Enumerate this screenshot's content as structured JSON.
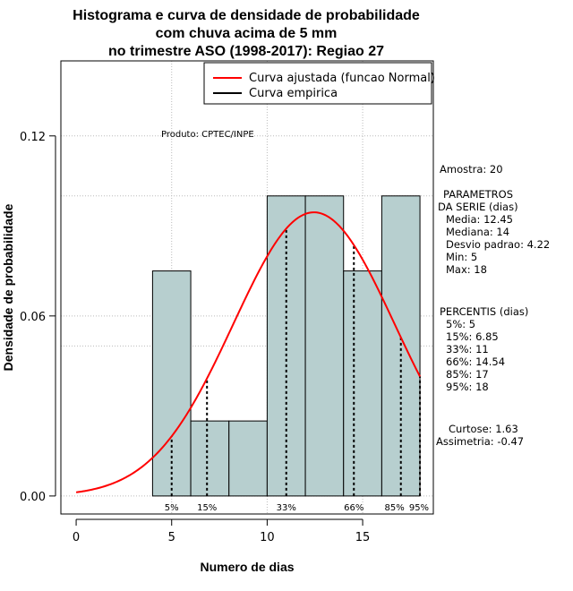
{
  "chart_data": {
    "type": "bar",
    "title_lines": [
      "Histograma e curva de densidade de probabilidade",
      "com chuva acima de 5 mm",
      "no trimestre ASO (1998-2017): Regiao 27"
    ],
    "xlabel": "Numero de dias",
    "ylabel": "Densidade de probabilidade",
    "xlim": [
      -0.8,
      18.7
    ],
    "ylim": [
      -0.006,
      0.145
    ],
    "x_ticks": [
      0,
      5,
      10,
      15
    ],
    "y_ticks": [
      0.0,
      0.06,
      0.12
    ],
    "x_tick_labels": [
      "0",
      "5",
      "10",
      "15"
    ],
    "y_tick_labels": [
      "0.00",
      "0.06",
      "0.12"
    ],
    "grid_x": [
      5,
      10,
      15
    ],
    "grid_y": [
      0.05,
      0.1
    ],
    "bars": [
      {
        "x0": 4,
        "x1": 6,
        "density": 0.075
      },
      {
        "x0": 6,
        "x1": 8,
        "density": 0.025
      },
      {
        "x0": 8,
        "x1": 10,
        "density": 0.025
      },
      {
        "x0": 10,
        "x1": 12,
        "density": 0.1
      },
      {
        "x0": 12,
        "x1": 14,
        "density": 0.1
      },
      {
        "x0": 14,
        "x1": 16,
        "density": 0.075
      },
      {
        "x0": 16,
        "x1": 18,
        "density": 0.1
      }
    ],
    "fitted_curve": {
      "mean": 12.45,
      "sd": 4.22,
      "x_from": 0,
      "x_to": 18,
      "color": "#ff0000"
    },
    "percentile_lines": [
      {
        "label": "5%",
        "x": 5
      },
      {
        "label": "15%",
        "x": 6.85
      },
      {
        "label": "33%",
        "x": 11
      },
      {
        "label": "66%",
        "x": 14.54
      },
      {
        "label": "85%",
        "x": 17
      },
      {
        "label": "95%",
        "x": 18
      }
    ],
    "legend": {
      "position": "top-right",
      "entries": [
        {
          "label": "Curva ajustada (funcao Normal)",
          "color": "#ff0000"
        },
        {
          "label": "Curva empirica",
          "color": "#000000"
        }
      ]
    },
    "annotations": {
      "produto": "Produto: CPTEC/INPE"
    },
    "colors": {
      "bar_fill": "#b7cfcf",
      "bar_stroke": "#000000",
      "grid": "#bbbbbb"
    }
  },
  "stats_panel": {
    "amostra": "Amostra: 20",
    "parametros_title_1": "PARAMETROS",
    "parametros_title_2": "DA SERIE (dias)",
    "media": "Media: 12.45",
    "mediana": "Mediana: 14",
    "desvio": "Desvio padrao: 4.22",
    "min": "Min: 5",
    "max": "Max: 18",
    "percentis_title": "PERCENTIS (dias)",
    "p5": "5%: 5",
    "p15": "15%: 6.85",
    "p33": "33%: 11",
    "p66": "66%: 14.54",
    "p85": "85%: 17",
    "p95": "95%: 18",
    "curtose": "Curtose: 1.63",
    "assimetria": "Assimetria: -0.47"
  }
}
